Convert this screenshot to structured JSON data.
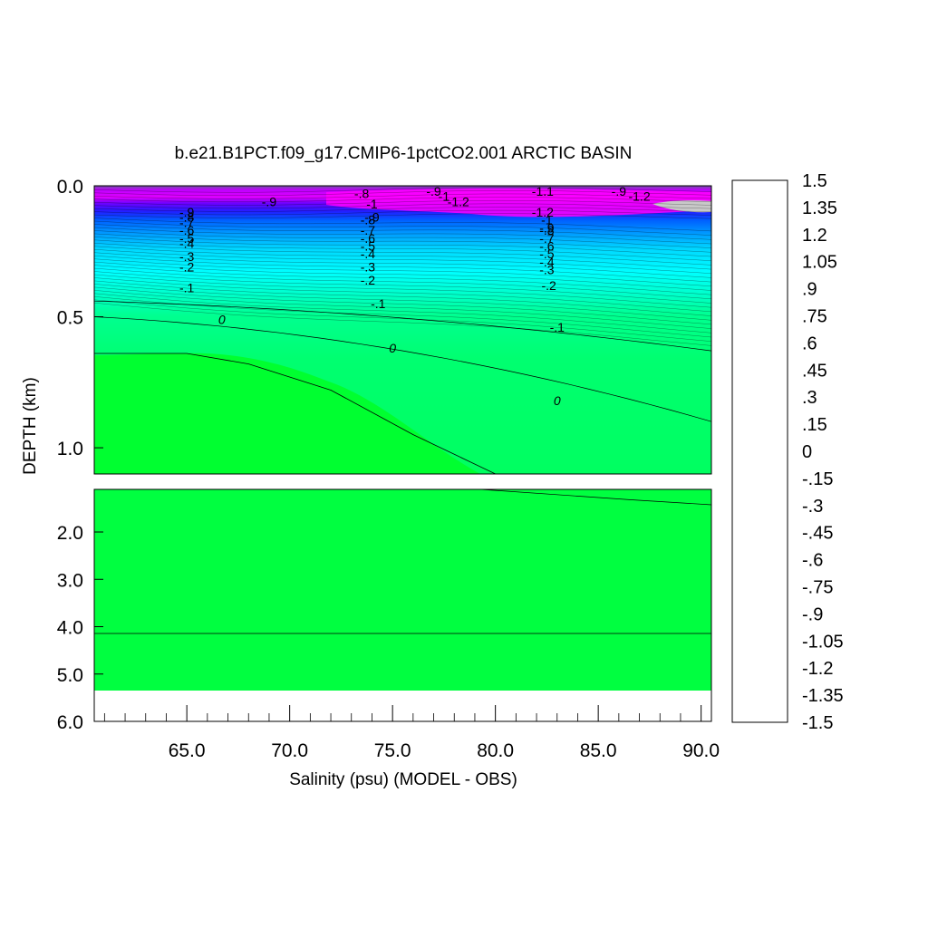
{
  "chart_data": {
    "type": "heatmap",
    "title": "b.e21.B1PCT.f09_g17.CMIP6-1pctCO2.001 ARCTIC BASIN",
    "xlabel": "Salinity (psu) (MODEL - OBS)",
    "ylabel": "DEPTH (km)",
    "xlim": [
      60.5,
      90.5
    ],
    "xticks": [
      "65.0",
      "70.0",
      "75.0",
      "80.0",
      "85.0",
      "90.0"
    ],
    "upper_panel": {
      "ylim": [
        0.0,
        1.1
      ],
      "yticks": [
        "0.0",
        "0.5",
        "1.0"
      ]
    },
    "lower_panel": {
      "ylim": [
        1.1,
        6.0
      ],
      "yticks": [
        "2.0",
        "3.0",
        "4.0",
        "5.0",
        "6.0"
      ],
      "data_bottom_km": 5.35
    },
    "colorbar": {
      "labels": [
        "1.5",
        "1.35",
        "1.2",
        "1.05",
        ".9",
        ".75",
        ".6",
        ".45",
        ".3",
        ".15",
        "0",
        "-.15",
        "-.3",
        "-.45",
        "-.6",
        "-.75",
        "-.9",
        "-1.05",
        "-1.2",
        "-1.35",
        "-1.5"
      ],
      "levels": [
        1.5,
        1.35,
        1.2,
        1.05,
        0.9,
        0.75,
        0.6,
        0.45,
        0.3,
        0.15,
        0,
        -0.15,
        -0.3,
        -0.45,
        -0.6,
        -0.75,
        -0.9,
        -1.05,
        -1.2,
        -1.35,
        -1.5
      ]
    },
    "contours": {
      "zero_line_depth_km": [
        0.64,
        0.64,
        0.68,
        0.78,
        0.95,
        1.1,
        1.12
      ],
      "zero_line_x": [
        60.5,
        65,
        68,
        72,
        76,
        80,
        90.5
      ],
      "contour_labels": [
        {
          "text": "-.9",
          "x": 65,
          "y": 0.1
        },
        {
          "text": "-.8",
          "x": 65,
          "y": 0.12
        },
        {
          "text": "-.7",
          "x": 65,
          "y": 0.14
        },
        {
          "text": "-.6",
          "x": 65,
          "y": 0.17
        },
        {
          "text": "-.5",
          "x": 65,
          "y": 0.2
        },
        {
          "text": "-.4",
          "x": 65,
          "y": 0.22
        },
        {
          "text": "-.3",
          "x": 65,
          "y": 0.27
        },
        {
          "text": "-.2",
          "x": 65,
          "y": 0.31
        },
        {
          "text": "-.1",
          "x": 65,
          "y": 0.39
        },
        {
          "text": "0",
          "x": 66.7,
          "y": 0.51
        },
        {
          "text": "-.8",
          "x": 73.5,
          "y": 0.03
        },
        {
          "text": "-1",
          "x": 74,
          "y": 0.07
        },
        {
          "text": "-.9",
          "x": 74,
          "y": 0.12
        },
        {
          "text": "-.8",
          "x": 73.8,
          "y": 0.13
        },
        {
          "text": "-.7",
          "x": 73.8,
          "y": 0.17
        },
        {
          "text": "-.6",
          "x": 73.8,
          "y": 0.2
        },
        {
          "text": "-.5",
          "x": 73.8,
          "y": 0.23
        },
        {
          "text": "-.4",
          "x": 73.8,
          "y": 0.26
        },
        {
          "text": "-.3",
          "x": 73.8,
          "y": 0.31
        },
        {
          "text": "-.2",
          "x": 73.8,
          "y": 0.36
        },
        {
          "text": "-.1",
          "x": 74.3,
          "y": 0.45
        },
        {
          "text": "0",
          "x": 75,
          "y": 0.62
        },
        {
          "text": "-.9",
          "x": 77,
          "y": 0.02
        },
        {
          "text": "-1",
          "x": 77.5,
          "y": 0.04
        },
        {
          "text": "-1.2",
          "x": 78.2,
          "y": 0.06
        },
        {
          "text": "-1.1",
          "x": 82.3,
          "y": 0.02
        },
        {
          "text": "-1.2",
          "x": 82.3,
          "y": 0.1
        },
        {
          "text": "-1",
          "x": 82.5,
          "y": 0.13
        },
        {
          "text": "-.9",
          "x": 82.5,
          "y": 0.16
        },
        {
          "text": "-.8",
          "x": 82.5,
          "y": 0.17
        },
        {
          "text": "-.7",
          "x": 82.5,
          "y": 0.2
        },
        {
          "text": "-.6",
          "x": 82.5,
          "y": 0.23
        },
        {
          "text": "-.5",
          "x": 82.5,
          "y": 0.26
        },
        {
          "text": "-.4",
          "x": 82.5,
          "y": 0.29
        },
        {
          "text": "-.3",
          "x": 82.5,
          "y": 0.32
        },
        {
          "text": "-.2",
          "x": 82.6,
          "y": 0.38
        },
        {
          "text": "-.1",
          "x": 83,
          "y": 0.54
        },
        {
          "text": "0",
          "x": 83,
          "y": 0.82
        },
        {
          "text": "-.9",
          "x": 69,
          "y": 0.06
        },
        {
          "text": "-.9",
          "x": 86,
          "y": 0.02
        },
        {
          "text": "-1.2",
          "x": 87,
          "y": 0.04
        }
      ]
    },
    "colors": {
      "deep_green": "#00ff30",
      "zero_band": "#00ff80",
      "cyan": "#00ffff",
      "blue": "#0050ff",
      "purple": "#8000ff",
      "magenta": "#ff00ff",
      "gray": "#c8c8c8"
    }
  }
}
